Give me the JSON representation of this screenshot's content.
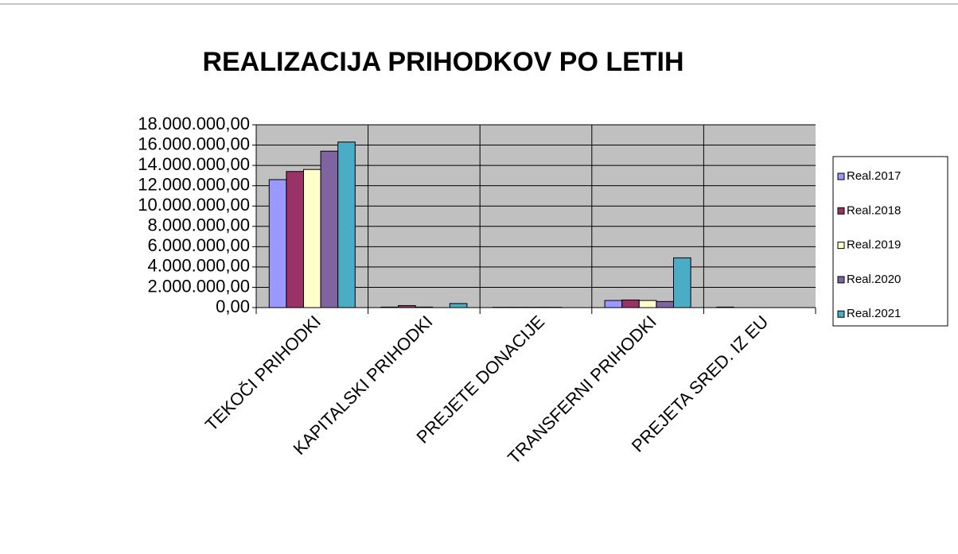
{
  "chart_data": {
    "type": "bar",
    "title": "REALIZACIJA PRIHODKOV PO LETIH",
    "categories": [
      "TEKOČI PRIHODKI",
      "KAPITALSKI PRIHODKI",
      "PREJETE DONACIJE",
      "TRANSFERNI PRIHODKI",
      "PREJETA SRED. IZ EU"
    ],
    "series": [
      {
        "name": "Real.2017",
        "color": "#9999ff",
        "values": [
          12600000,
          50000,
          30000,
          700000,
          50000
        ]
      },
      {
        "name": "Real.2018",
        "color": "#993366",
        "values": [
          13400000,
          200000,
          30000,
          750000,
          0
        ]
      },
      {
        "name": "Real.2019",
        "color": "#ffffcc",
        "values": [
          13600000,
          50000,
          30000,
          700000,
          0
        ]
      },
      {
        "name": "Real.2020",
        "color": "#8064a2",
        "values": [
          15400000,
          0,
          30000,
          600000,
          0
        ]
      },
      {
        "name": "Real.2021",
        "color": "#4bacc6",
        "values": [
          16300000,
          400000,
          0,
          4900000,
          0
        ]
      }
    ],
    "ylim": [
      0,
      18000000
    ],
    "yticks": [
      {
        "value": 0,
        "label": "0,00"
      },
      {
        "value": 2000000,
        "label": "2.000.000,00"
      },
      {
        "value": 4000000,
        "label": "4.000.000,00"
      },
      {
        "value": 6000000,
        "label": "6.000.000,00"
      },
      {
        "value": 8000000,
        "label": "8.000.000,00"
      },
      {
        "value": 10000000,
        "label": "10.000.000,00"
      },
      {
        "value": 12000000,
        "label": "12.000.000,00"
      },
      {
        "value": 14000000,
        "label": "14.000.000,00"
      },
      {
        "value": 16000000,
        "label": "16.000.000,00"
      },
      {
        "value": 18000000,
        "label": "18.000.000,00"
      }
    ],
    "grid": true,
    "legend": "right"
  }
}
